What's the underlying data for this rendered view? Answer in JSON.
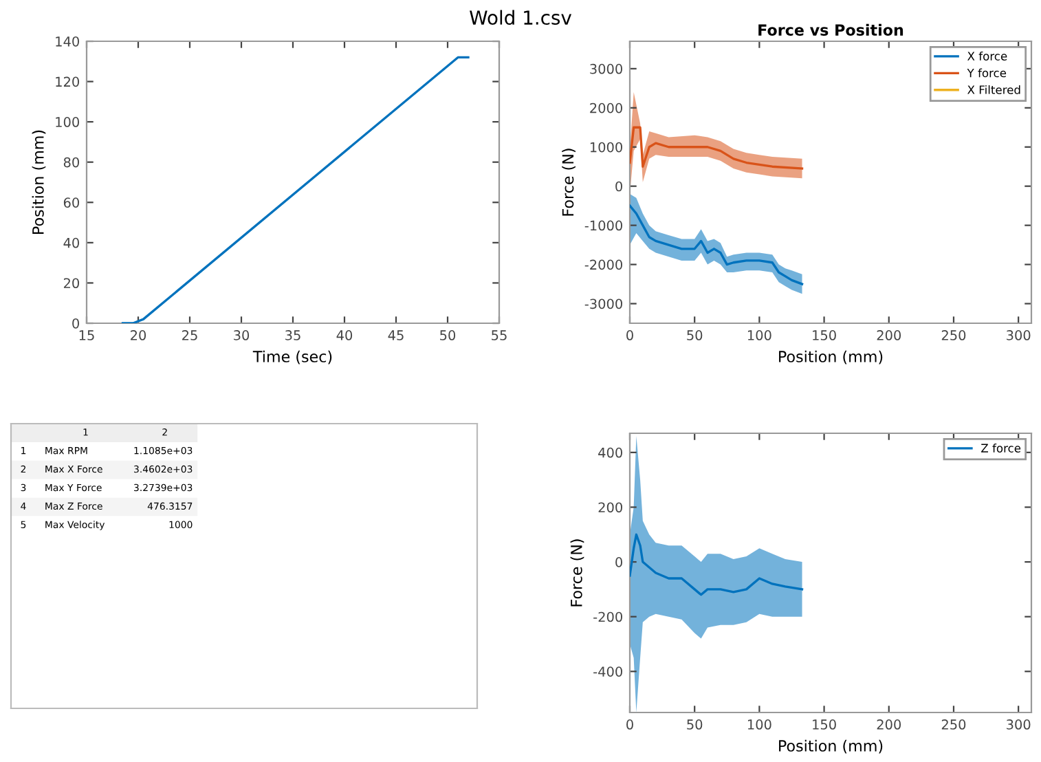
{
  "chart_data": [
    {
      "type": "line",
      "title": "Wold 1.csv",
      "xlabel": "Time (sec)",
      "ylabel": "Position (mm)",
      "xlim": [
        15,
        55
      ],
      "ylim": [
        0,
        140
      ],
      "xticks": [
        15,
        20,
        25,
        30,
        35,
        40,
        45,
        50,
        55
      ],
      "yticks": [
        0,
        20,
        40,
        60,
        80,
        100,
        120,
        140
      ],
      "grid": false,
      "legend": false,
      "series": [
        {
          "color": "#0072bd",
          "x": [
            18.5,
            19.5,
            20.5,
            51,
            52
          ],
          "values": [
            0,
            0,
            2,
            132,
            132
          ]
        }
      ]
    },
    {
      "type": "line",
      "title": "Force vs Position",
      "xlabel": "Position (mm)",
      "ylabel": "Force (N)",
      "xlim": [
        0,
        310
      ],
      "ylim": [
        -3500,
        3700
      ],
      "xticks": [
        0,
        50,
        100,
        150,
        200,
        250,
        300
      ],
      "yticks": [
        -3000,
        -2000,
        -1000,
        0,
        1000,
        2000,
        3000
      ],
      "grid": false,
      "legend": "top right",
      "series": [
        {
          "name": "X force",
          "color": "#0072bd",
          "x": [
            0,
            5,
            10,
            15,
            20,
            30,
            40,
            50,
            55,
            60,
            65,
            70,
            75,
            80,
            90,
            100,
            110,
            115,
            120,
            125,
            133
          ],
          "values": [
            -500,
            -700,
            -1000,
            -1300,
            -1400,
            -1500,
            -1600,
            -1600,
            -1400,
            -1700,
            -1600,
            -1700,
            -2000,
            -1950,
            -1900,
            -1900,
            -1950,
            -2200,
            -2300,
            -2400,
            -2500
          ],
          "lower": [
            -1500,
            -1200,
            -1400,
            -1600,
            -1700,
            -1800,
            -1900,
            -1900,
            -1700,
            -2000,
            -1900,
            -2000,
            -2200,
            -2200,
            -2150,
            -2150,
            -2200,
            -2450,
            -2550,
            -2650,
            -2750
          ],
          "upper": [
            -200,
            -300,
            -700,
            -1000,
            -1150,
            -1250,
            -1350,
            -1350,
            -1100,
            -1400,
            -1350,
            -1450,
            -1800,
            -1750,
            -1700,
            -1700,
            -1750,
            -2000,
            -2100,
            -2150,
            -2250
          ]
        },
        {
          "name": "Y force",
          "color": "#d95319",
          "x": [
            0,
            3,
            8,
            10,
            15,
            20,
            30,
            50,
            60,
            70,
            80,
            90,
            100,
            110,
            133
          ],
          "values": [
            600,
            1500,
            1500,
            500,
            1000,
            1100,
            1000,
            1000,
            1000,
            900,
            700,
            600,
            550,
            500,
            450
          ],
          "lower": [
            -200,
            900,
            1200,
            100,
            700,
            800,
            750,
            750,
            750,
            650,
            450,
            350,
            300,
            250,
            200
          ],
          "upper": [
            900,
            2400,
            1600,
            800,
            1400,
            1350,
            1250,
            1300,
            1250,
            1150,
            950,
            850,
            800,
            750,
            700
          ]
        },
        {
          "name": "X Filtered",
          "color": "#edb120"
        }
      ]
    },
    {
      "type": "other",
      "categories": [
        "Max RPM",
        "Max X Force",
        "Max Y Force",
        "Max Z Force",
        "Max Velocity"
      ],
      "value_labels": [
        "1.1085e+03",
        "3.4602e+03",
        "3.2739e+03",
        "476.3157",
        "1000"
      ],
      "y_categories": [
        "1",
        "2",
        "3",
        "4",
        "5"
      ],
      "annotations": [
        "1",
        "2"
      ]
    },
    {
      "type": "line",
      "xlabel": "Position (mm)",
      "ylabel": "Force (N)",
      "xlim": [
        0,
        310
      ],
      "ylim": [
        -550,
        470
      ],
      "xticks": [
        0,
        50,
        100,
        150,
        200,
        250,
        300
      ],
      "yticks": [
        -400,
        -200,
        0,
        200,
        400
      ],
      "grid": false,
      "legend": "top right",
      "series": [
        {
          "name": "Z force",
          "color": "#0072bd",
          "x": [
            0,
            3,
            5,
            8,
            10,
            15,
            20,
            30,
            40,
            50,
            55,
            60,
            70,
            80,
            90,
            100,
            110,
            120,
            133
          ],
          "values": [
            -50,
            50,
            100,
            60,
            0,
            -20,
            -40,
            -60,
            -60,
            -100,
            -120,
            -100,
            -100,
            -110,
            -100,
            -60,
            -80,
            -90,
            -100
          ],
          "lower": [
            -300,
            -350,
            -550,
            -350,
            -220,
            -200,
            -190,
            -200,
            -210,
            -260,
            -280,
            -240,
            -230,
            -230,
            -220,
            -190,
            -200,
            -200,
            -200
          ],
          "upper": [
            100,
            200,
            460,
            300,
            150,
            100,
            70,
            60,
            60,
            20,
            0,
            30,
            30,
            10,
            20,
            50,
            30,
            10,
            0
          ]
        }
      ]
    }
  ]
}
